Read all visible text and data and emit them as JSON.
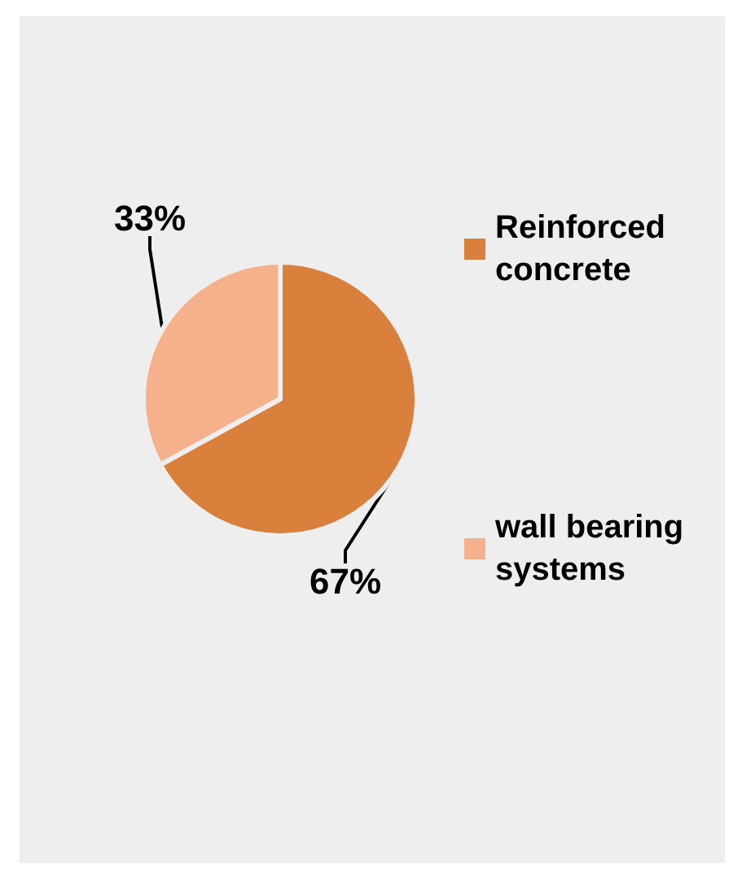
{
  "chart_data": {
    "type": "pie",
    "categories": [
      "Reinforced concrete",
      "wall bearing systems"
    ],
    "values": [
      67,
      33
    ],
    "colors": [
      "#d9803c",
      "#f5b08c"
    ],
    "value_labels": [
      "67%",
      "33%"
    ],
    "legend": "right"
  }
}
